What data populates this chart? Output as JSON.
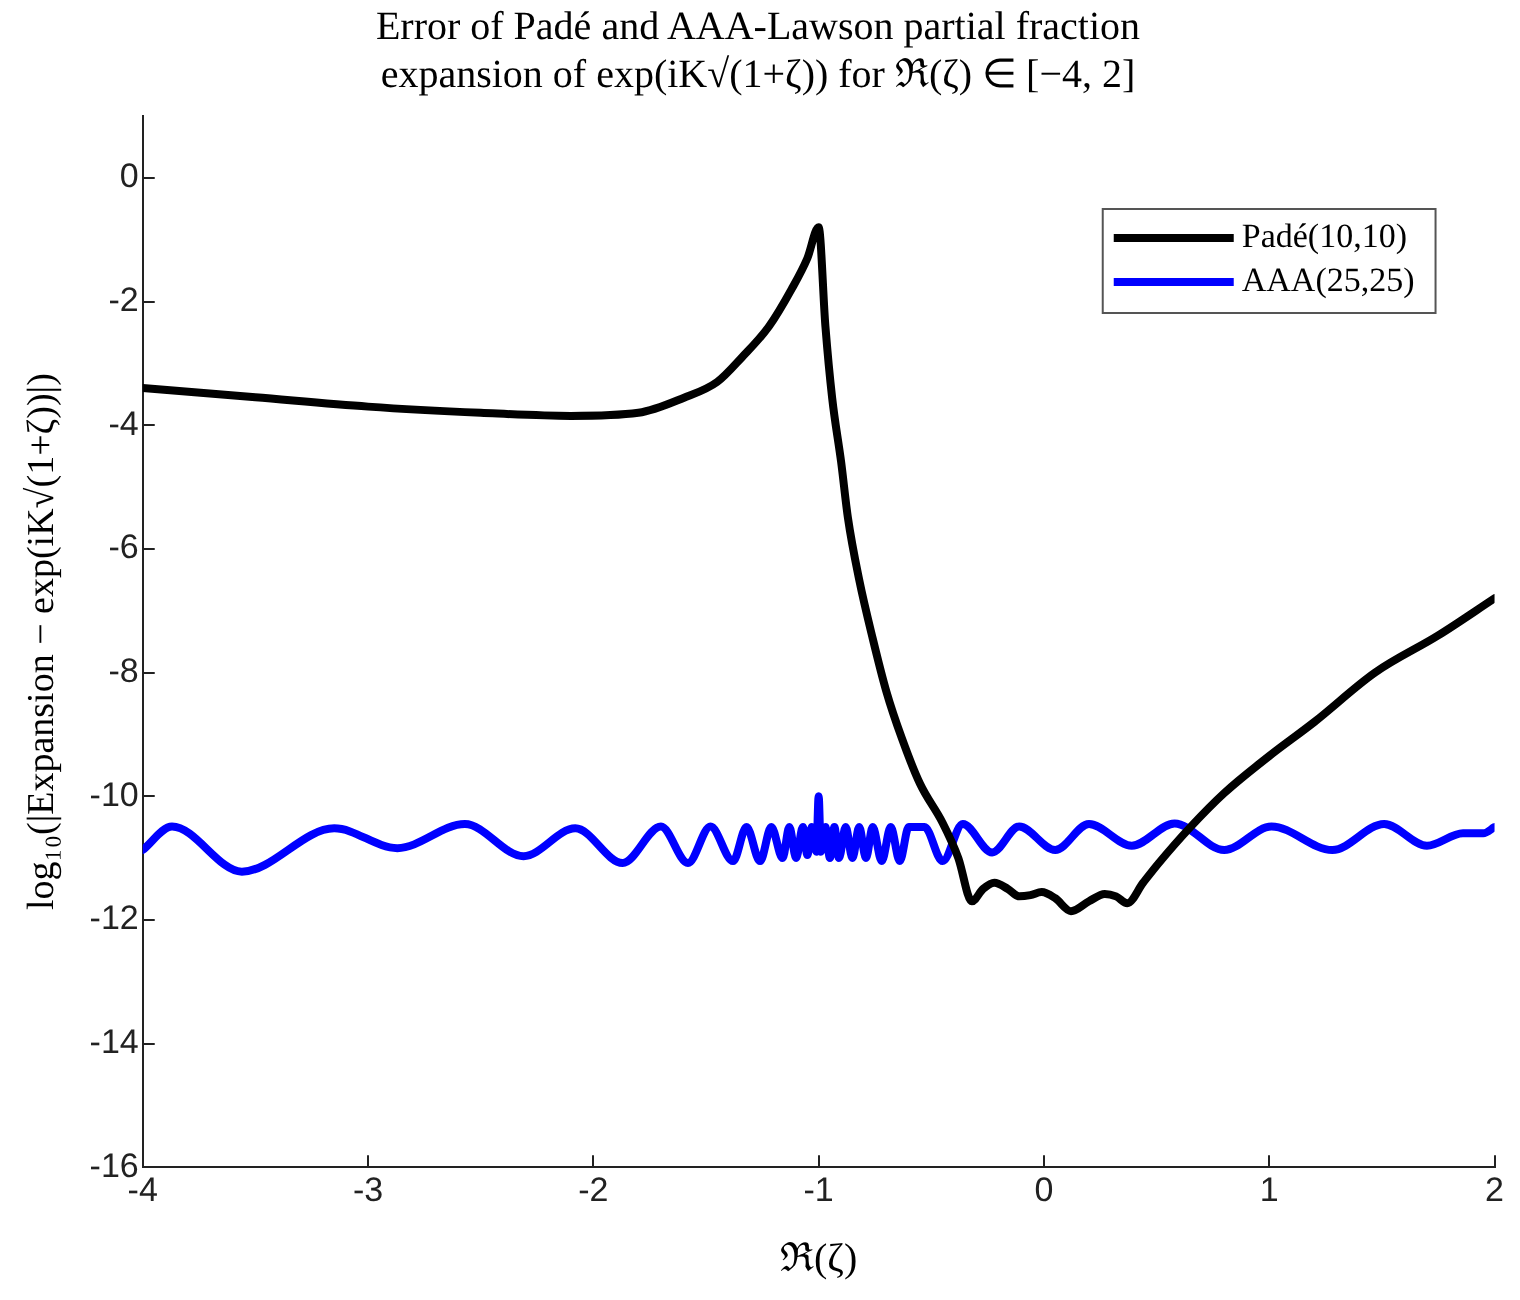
{
  "chart_data": {
    "type": "line",
    "title": "Error of Padé and AAA-Lawson partial fraction expansion of exp(iK√(1+ζ)) for ℜ(ζ) ∈ [−4, 2]",
    "xlabel": "ℜ(ζ)",
    "ylabel": "log₁₀(|Expansion − exp(iK√(1+ζ))|)",
    "xlim": [
      -4,
      2
    ],
    "xticks": [
      -4,
      -3,
      -2,
      -1,
      0,
      1,
      2
    ],
    "ylim": [
      -16,
      1
    ],
    "yticks": [
      -16,
      -14,
      -12,
      -10,
      -8,
      -6,
      -4,
      -2,
      0
    ],
    "grid": false,
    "legend": "top right",
    "marker": "none",
    "line_style": "solid",
    "series": [
      {
        "name": "Padé(10,10)",
        "color": "#000000",
        "x": [
          -4,
          -3.5,
          -3,
          -2.5,
          -2.1,
          -1.8,
          -1.6,
          -1.45,
          -1.34,
          -1.22,
          -1.12,
          -1.05,
          -1.0,
          -0.97,
          -0.94,
          -0.9,
          -0.87,
          -0.82,
          -0.76,
          -0.7,
          -0.63,
          -0.55,
          -0.45,
          -0.38,
          -0.32,
          -0.27,
          -0.22,
          -0.16,
          -0.11,
          -0.06,
          -0.01,
          0.05,
          0.12,
          0.2,
          0.27,
          0.32,
          0.37,
          0.44,
          0.51,
          0.65,
          0.8,
          1.0,
          1.2,
          1.47,
          1.75,
          2
        ],
        "values": [
          -3.4,
          -3.55,
          -3.7,
          -3.8,
          -3.85,
          -3.8,
          -3.56,
          -3.3,
          -2.9,
          -2.4,
          -1.8,
          -1.3,
          -0.8,
          -2.4,
          -3.56,
          -4.6,
          -5.5,
          -6.5,
          -7.45,
          -8.3,
          -9.07,
          -9.8,
          -10.43,
          -11.0,
          -11.7,
          -11.5,
          -11.4,
          -11.5,
          -11.62,
          -11.6,
          -11.55,
          -11.65,
          -11.86,
          -11.7,
          -11.58,
          -11.62,
          -11.73,
          -11.4,
          -11.08,
          -10.5,
          -9.95,
          -9.35,
          -8.8,
          -8.0,
          -7.4,
          -6.8
        ]
      },
      {
        "name": "AAA(25,25)",
        "color": "#0000ff",
        "x": [
          -4,
          -3.87,
          -3.56,
          -3.15,
          -2.87,
          -2.57,
          -2.31,
          -2.08,
          -1.87,
          -1.7,
          -1.58,
          -1.48,
          -1.38,
          -1.32,
          -1.26,
          -1.21,
          -1.16,
          -1.13,
          -1.1,
          -1.07,
          -1.05,
          -1.03,
          -1.01,
          -1.0,
          -0.99,
          -0.97,
          -0.95,
          -0.93,
          -0.91,
          -0.88,
          -0.85,
          -0.82,
          -0.79,
          -0.76,
          -0.72,
          -0.68,
          -0.64,
          -0.6,
          -0.53,
          -0.45,
          -0.36,
          -0.23,
          -0.11,
          0.05,
          0.2,
          0.39,
          0.58,
          0.8,
          1.01,
          1.28,
          1.51,
          1.7,
          1.86,
          1.95,
          2
        ],
        "values": [
          -10.87,
          -10.49,
          -11.22,
          -10.52,
          -10.84,
          -10.45,
          -10.97,
          -10.52,
          -11.08,
          -10.49,
          -11.08,
          -10.49,
          -11.05,
          -10.5,
          -11.05,
          -10.5,
          -11.0,
          -10.5,
          -11.0,
          -10.5,
          -10.95,
          -10.5,
          -10.9,
          -10.0,
          -10.9,
          -10.5,
          -11.0,
          -10.5,
          -11.0,
          -10.5,
          -11.0,
          -10.5,
          -11.0,
          -10.5,
          -11.05,
          -10.5,
          -11.05,
          -10.5,
          -10.5,
          -11.05,
          -10.45,
          -10.91,
          -10.49,
          -10.87,
          -10.45,
          -10.8,
          -10.44,
          -10.87,
          -10.49,
          -10.87,
          -10.45,
          -10.8,
          -10.6,
          -10.6,
          -10.5
        ]
      }
    ]
  }
}
